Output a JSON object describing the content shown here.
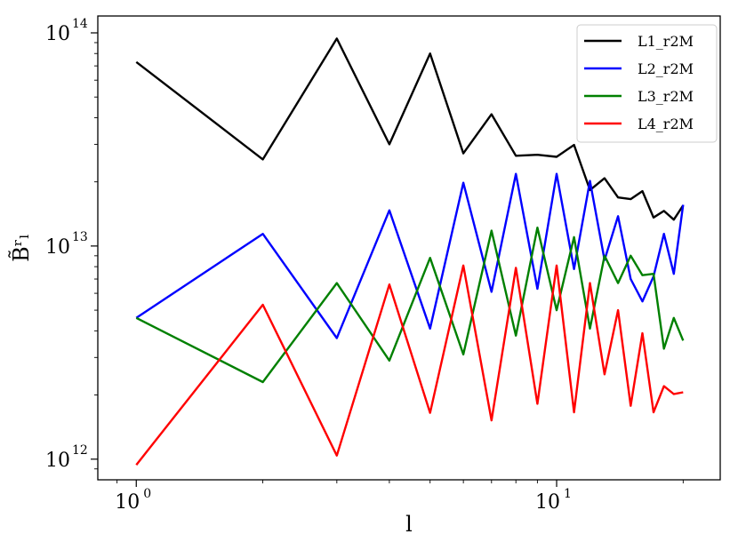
{
  "chart_data": {
    "type": "line",
    "title": "",
    "xlabel": "l",
    "ylabel": "B̃ʳₗ",
    "xscale": "log",
    "yscale": "log",
    "xlim": [
      0.81,
      24.5
    ],
    "ylim": [
      800000000000.0,
      120000000000000.0
    ],
    "grid": false,
    "legend_position": "top-right",
    "x": [
      1,
      2,
      3,
      4,
      5,
      6,
      7,
      8,
      9,
      10,
      11,
      12,
      13,
      14,
      15,
      16,
      17,
      18,
      19,
      20
    ],
    "series": [
      {
        "name": "L1_r2M",
        "color": "#000000",
        "values": [
          73000000000000.0,
          25500000000000.0,
          94000000000000.0,
          30000000000000.0,
          80000000000000.0,
          27200000000000.0,
          41500000000000.0,
          26500000000000.0,
          26800000000000.0,
          26200000000000.0,
          29800000000000.0,
          18300000000000.0,
          20800000000000.0,
          16900000000000.0,
          16600000000000.0,
          18100000000000.0,
          13600000000000.0,
          14600000000000.0,
          13300000000000.0,
          15500000000000.0
        ]
      },
      {
        "name": "L2_r2M",
        "color": "#0000ff",
        "values": [
          4600000000000.0,
          11400000000000.0,
          3700000000000.0,
          14700000000000.0,
          4100000000000.0,
          19800000000000.0,
          6100000000000.0,
          21800000000000.0,
          6300000000000.0,
          21800000000000.0,
          7800000000000.0,
          20200000000000.0,
          8600000000000.0,
          13800000000000.0,
          7000000000000.0,
          5500000000000.0,
          7200000000000.0,
          11400000000000.0,
          7400000000000.0,
          15600000000000.0
        ]
      },
      {
        "name": "L3_r2M",
        "color": "#008000",
        "values": [
          4600000000000.0,
          2300000000000.0,
          6700000000000.0,
          2900000000000.0,
          8800000000000.0,
          3100000000000.0,
          11800000000000.0,
          3800000000000.0,
          12200000000000.0,
          5000000000000.0,
          11000000000000.0,
          4100000000000.0,
          9000000000000.0,
          6700000000000.0,
          9000000000000.0,
          7300000000000.0,
          7400000000000.0,
          3300000000000.0,
          4600000000000.0,
          3600000000000.0
        ]
      },
      {
        "name": "L4_r2M",
        "color": "#ff0000",
        "values": [
          940000000000.0,
          5300000000000.0,
          1040000000000.0,
          6600000000000.0,
          1650000000000.0,
          8100000000000.0,
          1520000000000.0,
          7900000000000.0,
          1820000000000.0,
          8100000000000.0,
          1660000000000.0,
          6700000000000.0,
          2500000000000.0,
          5000000000000.0,
          1780000000000.0,
          3900000000000.0,
          1660000000000.0,
          2200000000000.0,
          2020000000000.0,
          2060000000000.0
        ]
      }
    ],
    "x_ticks": [
      {
        "base": "10",
        "exp": "0",
        "value": 1
      },
      {
        "base": "10",
        "exp": "1",
        "value": 10
      }
    ],
    "y_ticks": [
      {
        "base": "10",
        "exp": "12",
        "value": 1000000000000.0
      },
      {
        "base": "10",
        "exp": "13",
        "value": 10000000000000.0
      },
      {
        "base": "10",
        "exp": "14",
        "value": 100000000000000.0
      }
    ]
  }
}
